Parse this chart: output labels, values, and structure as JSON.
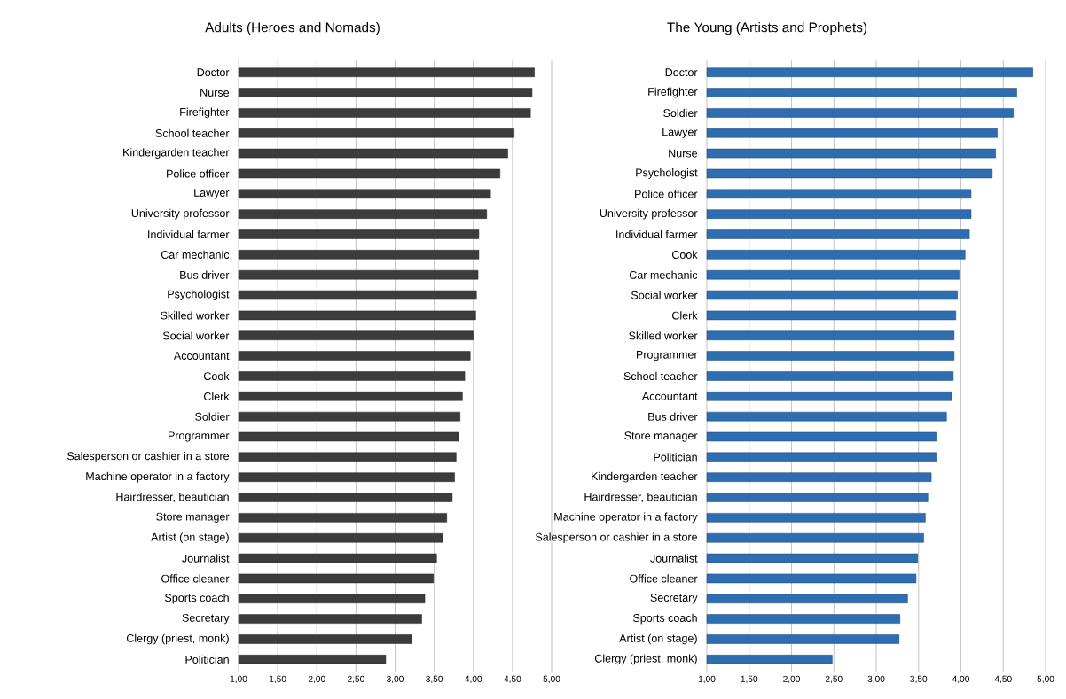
{
  "chart_data": [
    {
      "type": "bar",
      "orientation": "horizontal",
      "title": "Adults (Heroes and Nomads)",
      "color": "#3d3b3b",
      "grid": "x",
      "xlim": [
        1,
        5
      ],
      "xticks": [
        {
          "value": 1,
          "label": "1,00"
        },
        {
          "value": 1.5,
          "label": "1,50"
        },
        {
          "value": 2,
          "label": "2,00"
        },
        {
          "value": 2.5,
          "label": "2,50"
        },
        {
          "value": 3,
          "label": "3,00"
        },
        {
          "value": 3.5,
          "label": "3,50"
        },
        {
          "value": 4,
          "label": "4,00"
        },
        {
          "value": 4.5,
          "label": "4,50"
        },
        {
          "value": 5,
          "label": "5,00"
        }
      ],
      "categories": [
        "Doctor",
        "Nurse",
        "Firefighter",
        "School teacher",
        "Kindergarden teacher",
        "Police officer",
        "Lawyer",
        "University professor",
        "Individual farmer",
        "Car mechanic",
        "Bus driver",
        "Psychologist",
        "Skilled worker",
        "Social worker",
        "Accountant",
        "Cook",
        "Clerk",
        "Soldier",
        "Programmer",
        "Salesperson or cashier in a store",
        "Machine operator in a factory",
        "Hairdresser, beautician",
        "Store manager",
        "Artist (on stage)",
        "Journalist",
        "Office cleaner",
        "Sports coach",
        "Secretary",
        "Clergy (priest, monk)",
        "Politician"
      ],
      "values": [
        4.78,
        4.75,
        4.73,
        4.52,
        4.44,
        4.34,
        4.22,
        4.17,
        4.07,
        4.07,
        4.06,
        4.04,
        4.03,
        4.0,
        3.96,
        3.89,
        3.86,
        3.83,
        3.81,
        3.78,
        3.76,
        3.73,
        3.66,
        3.61,
        3.53,
        3.49,
        3.38,
        3.34,
        3.21,
        2.88
      ]
    },
    {
      "type": "bar",
      "orientation": "horizontal",
      "title": "The Young (Artists and Prophets)",
      "color": "#2e6daf",
      "grid": "x",
      "xlim": [
        1,
        5
      ],
      "xticks": [
        {
          "value": 1,
          "label": "1,00"
        },
        {
          "value": 1.5,
          "label": "1,50"
        },
        {
          "value": 2,
          "label": "2,00"
        },
        {
          "value": 2.5,
          "label": "2,50"
        },
        {
          "value": 3,
          "label": "3,00"
        },
        {
          "value": 3.5,
          "label": "3,50"
        },
        {
          "value": 4,
          "label": "4,00"
        },
        {
          "value": 4.5,
          "label": "4,50"
        },
        {
          "value": 5,
          "label": "5,00"
        }
      ],
      "categories": [
        "Doctor",
        "Firefighter",
        "Soldier",
        "Lawyer",
        "Nurse",
        "Psychologist",
        "Police officer",
        "University professor",
        "Individual farmer",
        "Cook",
        "Car mechanic",
        "Social worker",
        "Clerk",
        "Skilled worker",
        "Programmer",
        "School teacher",
        "Accountant",
        "Bus driver",
        "Store manager",
        "Politician",
        "Kindergarden teacher",
        "Hairdresser, beautician",
        "Machine operator in a factory",
        "Salesperson or cashier in a store",
        "Journalist",
        "Office cleaner",
        "Secretary",
        "Sports coach",
        "Artist (on stage)",
        "Clergy (priest, monk)"
      ],
      "values": [
        4.85,
        4.66,
        4.62,
        4.43,
        4.41,
        4.37,
        4.12,
        4.12,
        4.1,
        4.05,
        3.98,
        3.96,
        3.94,
        3.92,
        3.92,
        3.91,
        3.89,
        3.83,
        3.71,
        3.71,
        3.65,
        3.61,
        3.58,
        3.56,
        3.49,
        3.47,
        3.37,
        3.28,
        3.27,
        2.48
      ]
    }
  ]
}
